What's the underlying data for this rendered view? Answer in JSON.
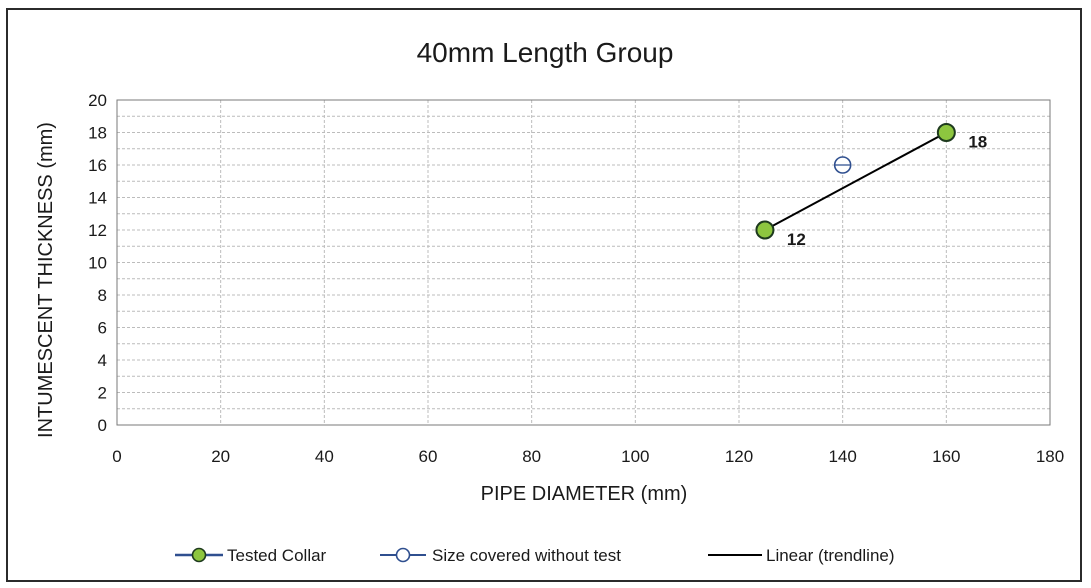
{
  "chart_data": {
    "type": "scatter",
    "title": "40mm Length Group",
    "xlabel": "PIPE DIAMETER (mm)",
    "ylabel": "INTUMESCENT THICKNESS (mm)",
    "xlim": [
      0,
      180
    ],
    "ylim": [
      0,
      20
    ],
    "x_ticks": [
      0,
      20,
      40,
      60,
      80,
      100,
      120,
      140,
      160,
      180
    ],
    "y_ticks": [
      0,
      2,
      4,
      6,
      8,
      10,
      12,
      14,
      16,
      18,
      20
    ],
    "grid": true,
    "legend_position": "bottom",
    "series": [
      {
        "name": "Tested Collar",
        "marker": "filled-circle",
        "color": "#8dc63f",
        "line_color": "#2f4f8f",
        "points": [
          {
            "x": 125,
            "y": 12,
            "label": "12"
          },
          {
            "x": 160,
            "y": 18,
            "label": "18"
          }
        ]
      },
      {
        "name": "Size covered without test",
        "marker": "open-circle",
        "color": "#2f4f8f",
        "points": [
          {
            "x": 140,
            "y": 16
          }
        ]
      },
      {
        "name": "Linear (trendline)",
        "type": "line",
        "color": "#000000",
        "points": [
          {
            "x": 125,
            "y": 12
          },
          {
            "x": 160,
            "y": 18
          }
        ]
      }
    ]
  }
}
